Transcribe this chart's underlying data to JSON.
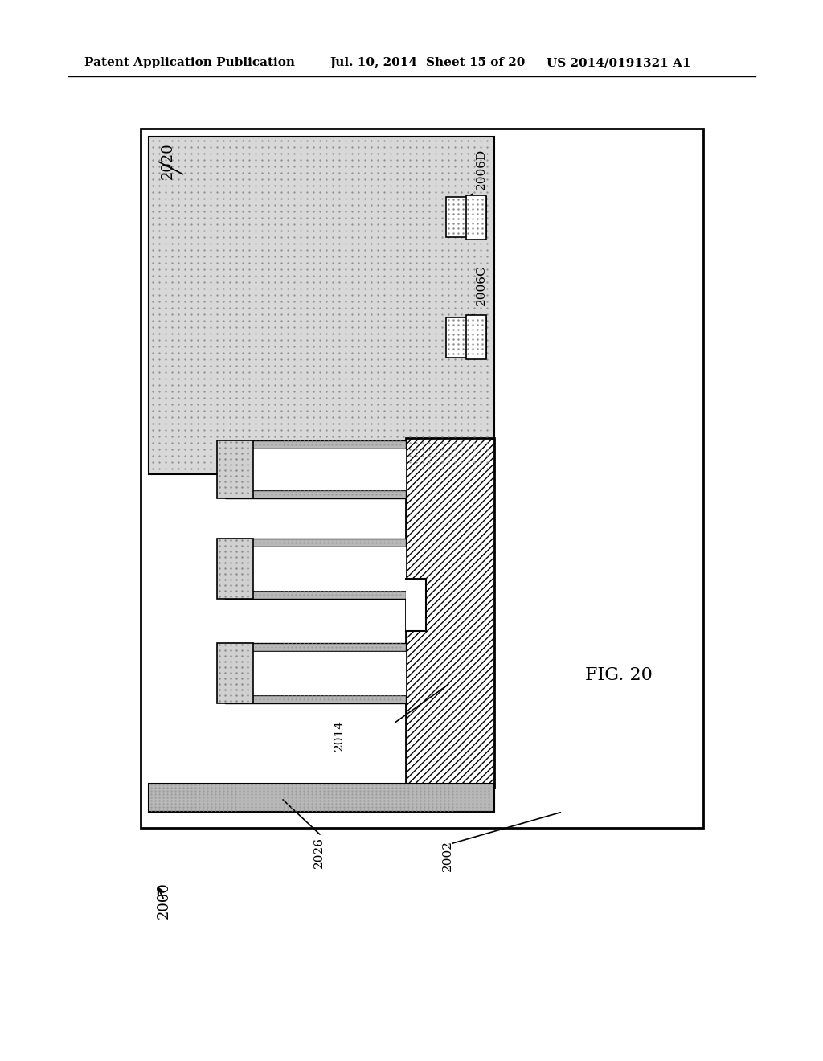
{
  "bg_color": "#ffffff",
  "header_text": "Patent Application Publication",
  "header_date": "Jul. 10, 2014",
  "header_sheet": "Sheet 15 of 20",
  "header_patent": "US 2014/0191321 A1",
  "fig_label": "FIG. 20",
  "label_2000": "2000",
  "label_2002": "2002",
  "label_2006C": "2006C",
  "label_2006D": "2006D",
  "label_2014": "2014",
  "label_2020": "2020",
  "label_2026": "2026",
  "dot_fill": "#c8c8c8",
  "hatch_fill": "#a0a0a0",
  "line_color": "#000000",
  "fin_color": "#ffffff"
}
